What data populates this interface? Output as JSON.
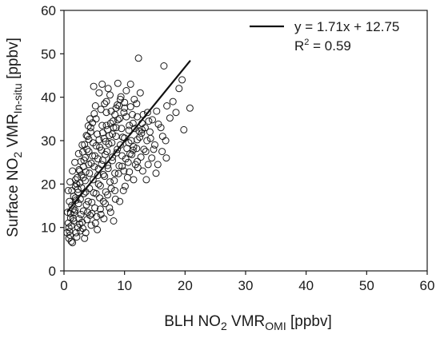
{
  "chart_data": {
    "type": "scatter",
    "title": "",
    "xlabel": {
      "pre": "BLH NO",
      "sub1": "2",
      "mid": " VMR",
      "sub2": "OMI",
      "post": " [ppbv]"
    },
    "ylabel": {
      "pre": "Surface NO",
      "sub1": "2",
      "mid": " VMR",
      "sub2": "In-situ",
      "post": " [ppbv]"
    },
    "xlim": [
      0,
      60
    ],
    "ylim": [
      0,
      60
    ],
    "x_ticks": [
      0,
      10,
      20,
      30,
      40,
      50,
      60
    ],
    "y_ticks": [
      0,
      10,
      20,
      30,
      40,
      50,
      60
    ],
    "grid": false,
    "legend_position": "top-right",
    "fit_line": {
      "slope": 1.71,
      "intercept": 12.75,
      "x_range": [
        0.6,
        20.8
      ],
      "r2": 0.59
    },
    "legend": {
      "equation": "y = 1.71x + 12.75",
      "r2_pre": "R",
      "r2_sup": "2",
      "r2_post": " = 0.59"
    },
    "marker": {
      "shape": "open-circle",
      "color": "#1a1a1a"
    },
    "series": [
      {
        "points": [
          [
            0.8,
            7.5
          ],
          [
            1.0,
            8.2
          ],
          [
            0.9,
            9.1
          ],
          [
            1.2,
            10.4
          ],
          [
            0.7,
            11.0
          ],
          [
            1.5,
            12.1
          ],
          [
            1.1,
            13.2
          ],
          [
            1.8,
            14.0
          ],
          [
            1.3,
            15.1
          ],
          [
            2.0,
            16.3
          ],
          [
            1.6,
            17.2
          ],
          [
            2.3,
            18.1
          ],
          [
            1.9,
            19.4
          ],
          [
            2.6,
            20.2
          ],
          [
            2.2,
            21.5
          ],
          [
            2.9,
            22.1
          ],
          [
            2.5,
            23.3
          ],
          [
            3.2,
            24.0
          ],
          [
            2.8,
            25.2
          ],
          [
            3.5,
            26.1
          ],
          [
            3.1,
            27.4
          ],
          [
            3.8,
            28.0
          ],
          [
            3.4,
            29.1
          ],
          [
            4.1,
            30.3
          ],
          [
            3.7,
            31.2
          ],
          [
            4.4,
            32.0
          ],
          [
            4.0,
            33.4
          ],
          [
            4.7,
            34.1
          ],
          [
            4.3,
            35.0
          ],
          [
            5.0,
            36.2
          ],
          [
            5.4,
            12.5
          ],
          [
            6.0,
            14.2
          ],
          [
            6.5,
            16.0
          ],
          [
            7.2,
            17.5
          ],
          [
            7.8,
            19.0
          ],
          [
            8.3,
            20.8
          ],
          [
            9.0,
            22.4
          ],
          [
            9.6,
            24.1
          ],
          [
            10.2,
            25.8
          ],
          [
            10.9,
            27.0
          ],
          [
            11.5,
            28.6
          ],
          [
            12.1,
            30.2
          ],
          [
            12.8,
            31.7
          ],
          [
            13.4,
            33.0
          ],
          [
            14.0,
            34.5
          ],
          [
            5.6,
            22.0
          ],
          [
            6.2,
            24.5
          ],
          [
            6.8,
            26.8
          ],
          [
            7.4,
            29.2
          ],
          [
            8.0,
            31.5
          ],
          [
            8.6,
            33.0
          ],
          [
            9.2,
            35.1
          ],
          [
            5.2,
            38.0
          ],
          [
            6.1,
            37.2
          ],
          [
            7.0,
            39.0
          ],
          [
            7.6,
            40.5
          ],
          [
            5.8,
            41.0
          ],
          [
            4.9,
            42.5
          ],
          [
            6.3,
            43.0
          ],
          [
            8.8,
            38.2
          ],
          [
            9.4,
            40.1
          ],
          [
            10.0,
            37.5
          ],
          [
            11.3,
            36.0
          ],
          [
            12.0,
            38.5
          ],
          [
            12.6,
            41.0
          ],
          [
            11.0,
            43.0
          ],
          [
            12.3,
            49.0
          ],
          [
            16.5,
            47.2
          ],
          [
            19.5,
            44.0
          ],
          [
            17.0,
            38.0
          ],
          [
            18.5,
            36.5
          ],
          [
            19.8,
            32.5
          ],
          [
            16.8,
            30.0
          ],
          [
            15.6,
            33.8
          ],
          [
            20.8,
            37.5
          ],
          [
            16.2,
            27.5
          ],
          [
            13.0,
            23.0
          ],
          [
            11.8,
            24.5
          ],
          [
            14.5,
            26.0
          ],
          [
            15.2,
            22.5
          ],
          [
            13.6,
            21.0
          ],
          [
            10.5,
            21.5
          ],
          [
            9.8,
            18.5
          ],
          [
            8.5,
            16.5
          ],
          [
            7.5,
            14.5
          ],
          [
            8.2,
            11.5
          ],
          [
            6.6,
            12.0
          ],
          [
            5.5,
            9.5
          ],
          [
            4.5,
            10.5
          ],
          [
            3.6,
            8.8
          ],
          [
            2.7,
            9.2
          ],
          [
            1.4,
            6.5
          ],
          [
            2.1,
            7.8
          ],
          [
            3.0,
            11.2
          ],
          [
            3.9,
            13.5
          ],
          [
            4.6,
            15.8
          ],
          [
            5.3,
            17.8
          ],
          [
            6.0,
            19.6
          ],
          [
            6.7,
            21.8
          ],
          [
            7.3,
            23.6
          ],
          [
            8.0,
            25.4
          ],
          [
            8.7,
            27.2
          ],
          [
            9.3,
            29.0
          ],
          [
            10.0,
            30.6
          ],
          [
            10.7,
            32.4
          ],
          [
            11.4,
            34.0
          ],
          [
            12.1,
            35.5
          ],
          [
            4.2,
            19.0
          ],
          [
            3.3,
            17.8
          ],
          [
            2.4,
            15.5
          ],
          [
            1.7,
            13.5
          ],
          [
            4.8,
            21.0
          ],
          [
            5.7,
            23.5
          ],
          [
            6.4,
            25.5
          ],
          [
            7.1,
            27.5
          ],
          [
            7.9,
            29.5
          ],
          [
            8.6,
            31.0
          ],
          [
            9.5,
            32.8
          ],
          [
            3.6,
            22.8
          ],
          [
            4.5,
            24.8
          ],
          [
            5.1,
            26.5
          ],
          [
            5.9,
            28.5
          ],
          [
            6.6,
            30.5
          ],
          [
            7.2,
            32.5
          ],
          [
            8.1,
            34.5
          ],
          [
            2.5,
            12.0
          ],
          [
            3.2,
            13.8
          ],
          [
            4.0,
            16.0
          ],
          [
            4.9,
            18.0
          ],
          [
            5.7,
            20.0
          ],
          [
            6.5,
            22.2
          ],
          [
            7.2,
            24.3
          ],
          [
            8.0,
            26.2
          ],
          [
            8.8,
            28.0
          ],
          [
            9.6,
            26.5
          ],
          [
            10.4,
            28.2
          ],
          [
            11.1,
            30.0
          ],
          [
            12.4,
            32.2
          ],
          [
            13.2,
            28.0
          ],
          [
            14.3,
            30.5
          ],
          [
            15.0,
            29.0
          ],
          [
            13.8,
            36.5
          ],
          [
            12.9,
            34.0
          ],
          [
            11.6,
            39.5
          ],
          [
            10.8,
            33.5
          ],
          [
            9.9,
            36.5
          ],
          [
            9.1,
            38.0
          ],
          [
            8.4,
            36.0
          ],
          [
            7.7,
            34.0
          ],
          [
            7.0,
            36.5
          ],
          [
            6.3,
            33.5
          ],
          [
            5.5,
            31.5
          ],
          [
            4.8,
            29.5
          ],
          [
            4.1,
            27.5
          ],
          [
            3.3,
            25.5
          ],
          [
            2.6,
            23.0
          ],
          [
            1.9,
            21.0
          ],
          [
            1.3,
            18.5
          ],
          [
            0.9,
            16.0
          ],
          [
            0.6,
            13.5
          ],
          [
            1.6,
            11.5
          ],
          [
            2.3,
            10.0
          ],
          [
            3.4,
            7.5
          ],
          [
            0.5,
            8.8
          ],
          [
            1.2,
            6.8
          ],
          [
            2.8,
            13.0
          ],
          [
            3.7,
            15.2
          ],
          [
            4.3,
            12.8
          ],
          [
            5.1,
            14.5
          ],
          [
            5.9,
            16.8
          ],
          [
            6.9,
            18.2
          ],
          [
            7.6,
            20.5
          ],
          [
            8.4,
            22.5
          ],
          [
            9.1,
            24.2
          ],
          [
            9.9,
            23.0
          ],
          [
            10.6,
            25.0
          ],
          [
            11.2,
            26.8
          ],
          [
            12.0,
            28.2
          ],
          [
            12.7,
            26.2
          ],
          [
            13.5,
            27.5
          ],
          [
            14.2,
            32.0
          ],
          [
            15.5,
            24.5
          ],
          [
            16.0,
            33.0
          ],
          [
            17.5,
            35.2
          ],
          [
            18.0,
            39.0
          ],
          [
            19.0,
            42.0
          ],
          [
            8.9,
            43.2
          ],
          [
            10.3,
            41.5
          ],
          [
            7.3,
            42.0
          ],
          [
            6.7,
            38.5
          ],
          [
            5.3,
            35.0
          ],
          [
            4.4,
            33.0
          ],
          [
            3.9,
            31.0
          ],
          [
            3.0,
            29.0
          ],
          [
            2.4,
            27.0
          ],
          [
            1.8,
            25.0
          ],
          [
            1.4,
            23.0
          ],
          [
            1.0,
            20.5
          ],
          [
            0.7,
            18.5
          ],
          [
            2.1,
            20.0
          ],
          [
            2.9,
            19.2
          ],
          [
            3.5,
            20.8
          ],
          [
            4.2,
            22.5
          ],
          [
            5.0,
            24.0
          ],
          [
            5.6,
            25.8
          ],
          [
            6.2,
            27.8
          ],
          [
            6.9,
            29.8
          ],
          [
            7.5,
            31.2
          ],
          [
            8.2,
            33.0
          ],
          [
            8.9,
            34.8
          ],
          [
            9.7,
            30.8
          ],
          [
            10.3,
            35.5
          ],
          [
            11.0,
            37.8
          ],
          [
            11.7,
            32.8
          ],
          [
            12.5,
            30.8
          ],
          [
            13.1,
            36.0
          ],
          [
            13.9,
            24.5
          ],
          [
            14.8,
            28.0
          ],
          [
            16.3,
            31.0
          ],
          [
            16.9,
            26.0
          ],
          [
            2.0,
            8.8
          ],
          [
            2.6,
            10.8
          ],
          [
            3.1,
            9.8
          ],
          [
            3.8,
            11.8
          ],
          [
            4.6,
            13.2
          ],
          [
            5.2,
            11.0
          ],
          [
            6.1,
            13.0
          ],
          [
            6.8,
            15.5
          ],
          [
            7.7,
            13.5
          ],
          [
            8.4,
            18.5
          ],
          [
            9.2,
            16.0
          ],
          [
            10.1,
            19.5
          ],
          [
            10.8,
            22.8
          ],
          [
            11.5,
            21.0
          ],
          [
            12.2,
            23.8
          ],
          [
            0.8,
            10.0
          ],
          [
            1.1,
            12.2
          ],
          [
            1.5,
            14.2
          ],
          [
            1.9,
            16.8
          ],
          [
            2.3,
            18.8
          ],
          [
            2.7,
            16.5
          ],
          [
            3.2,
            21.5
          ],
          [
            3.6,
            18.2
          ],
          [
            4.1,
            24.5
          ],
          [
            4.7,
            26.5
          ],
          [
            5.3,
            28.8
          ],
          [
            5.8,
            30.2
          ],
          [
            6.4,
            31.8
          ],
          [
            7.0,
            33.5
          ],
          [
            7.8,
            36.8
          ],
          [
            8.6,
            37.5
          ],
          [
            9.3,
            39.5
          ],
          [
            10.0,
            38.8
          ],
          [
            10.7,
            29.5
          ],
          [
            11.4,
            27.8
          ],
          [
            12.1,
            25.2
          ],
          [
            12.9,
            32.5
          ],
          [
            13.7,
            30.0
          ],
          [
            14.6,
            34.8
          ],
          [
            15.3,
            36.8
          ]
        ]
      }
    ]
  }
}
